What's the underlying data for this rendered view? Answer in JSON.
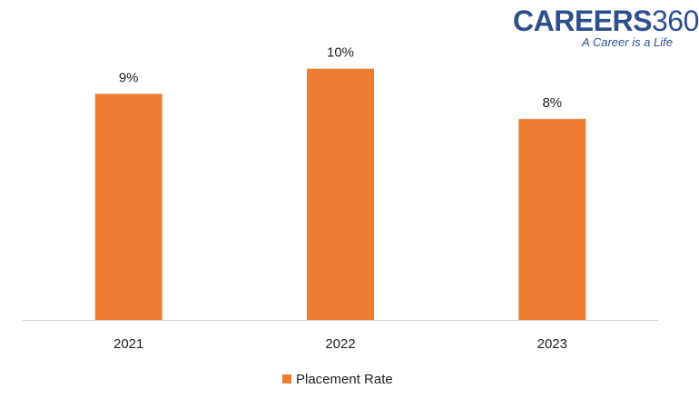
{
  "logo": {
    "brand": "CAREERS",
    "brand_number": "360",
    "tagline": "A Career is a Life"
  },
  "chart_data": {
    "type": "bar",
    "categories": [
      "2021",
      "2022",
      "2023"
    ],
    "series": [
      {
        "name": "Placement Rate",
        "values": [
          9,
          10,
          8
        ],
        "labels": [
          "9%",
          "10%",
          "8%"
        ],
        "color": "#ed7d31"
      }
    ],
    "title": "",
    "xlabel": "",
    "ylabel": "",
    "ylim": [
      0,
      11.0
    ],
    "grid": false,
    "legend_position": "bottom",
    "axis_color": "#d9d9d9"
  }
}
